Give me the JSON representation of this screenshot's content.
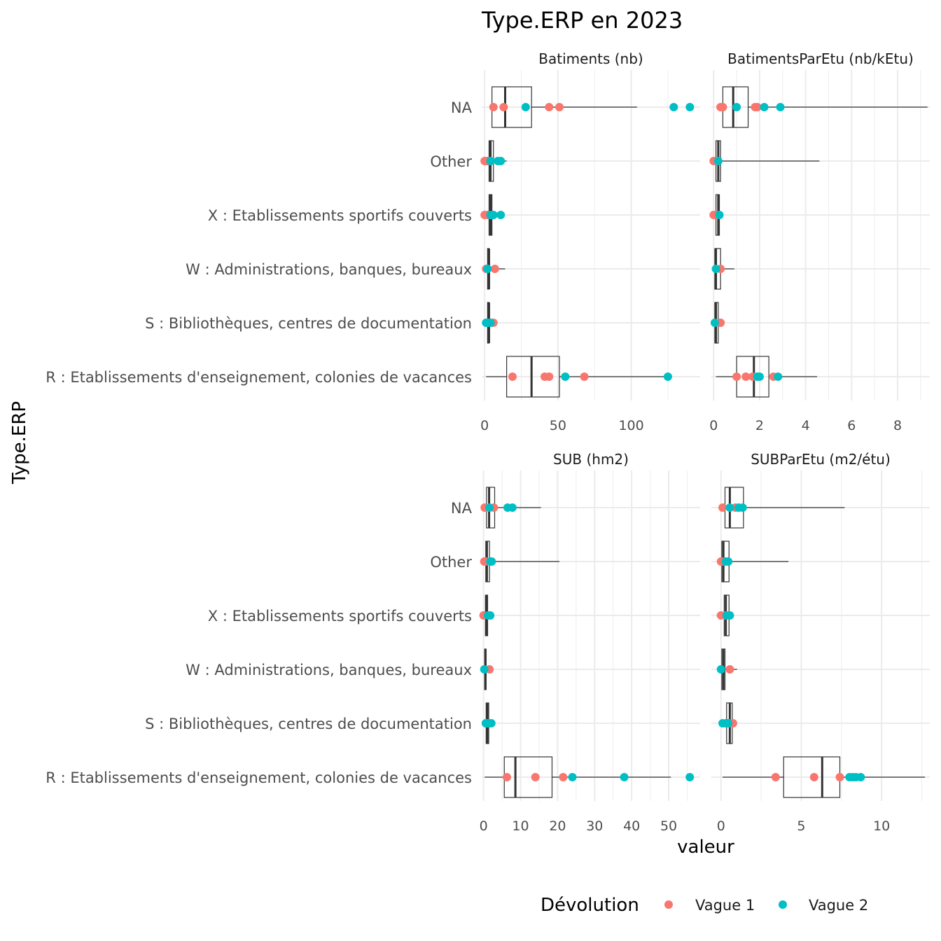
{
  "chart_data": {
    "type": "boxplot",
    "title": "Type.ERP en 2023",
    "xlabel": "valeur",
    "ylabel": "Type.ERP",
    "categories": [
      "NA",
      "Other",
      "X : Etablissements sportifs couverts",
      "W : Administrations, banques, bureaux",
      "S : Bibliothèques, centres de documentation",
      "R : Etablissements d'enseignement, colonies de vacances"
    ],
    "legend": {
      "title": "Dévolution",
      "position": "bottom",
      "entries": [
        {
          "name": "Vague 1",
          "color": "#F8766D"
        },
        {
          "name": "Vague 2",
          "color": "#00BFC4"
        }
      ]
    },
    "facets": [
      {
        "title": "Batiments (nb)",
        "xlim": [
          -2,
          147
        ],
        "ticks": [
          0,
          50,
          100
        ],
        "boxes": [
          {
            "category": "NA",
            "whisker_low": 5,
            "q1": 5,
            "median": 14,
            "q3": 32,
            "whisker_high": 104
          },
          {
            "category": "Other",
            "whisker_low": 2,
            "q1": 3,
            "median": 4,
            "q3": 6,
            "whisker_high": 15
          },
          {
            "category": "X : Etablissements sportifs couverts",
            "whisker_low": 2,
            "q1": 3,
            "median": 4,
            "q3": 5,
            "whisker_high": 5
          },
          {
            "category": "W : Administrations, banques, bureaux",
            "whisker_low": 2,
            "q1": 2,
            "median": 3,
            "q3": 3,
            "whisker_high": 14
          },
          {
            "category": "S : Bibliothèques, centres de documentation",
            "whisker_low": 2,
            "q1": 2,
            "median": 3,
            "q3": 3,
            "whisker_high": 6
          },
          {
            "category": "R : Etablissements d'enseignement, colonies de vacances",
            "whisker_low": 1,
            "q1": 15,
            "median": 32,
            "q3": 51,
            "whisker_high": 127
          }
        ],
        "points": [
          {
            "category": "NA",
            "group": "Vague 1",
            "values": [
              6,
              13,
              44,
              51
            ]
          },
          {
            "category": "NA",
            "group": "Vague 2",
            "values": [
              28,
              129,
              140
            ]
          },
          {
            "category": "Other",
            "group": "Vague 1",
            "values": [
              0,
              1,
              2,
              3
            ]
          },
          {
            "category": "Other",
            "group": "Vague 2",
            "values": [
              4,
              9,
              11
            ]
          },
          {
            "category": "X : Etablissements sportifs couverts",
            "group": "Vague 1",
            "values": [
              0,
              2
            ]
          },
          {
            "category": "X : Etablissements sportifs couverts",
            "group": "Vague 2",
            "values": [
              4,
              6,
              11
            ]
          },
          {
            "category": "W : Administrations, banques, bureaux",
            "group": "Vague 1",
            "values": [
              1,
              7
            ]
          },
          {
            "category": "W : Administrations, banques, bureaux",
            "group": "Vague 2",
            "values": [
              2
            ]
          },
          {
            "category": "S : Bibliothèques, centres de documentation",
            "group": "Vague 1",
            "values": [
              2,
              6
            ]
          },
          {
            "category": "S : Bibliothèques, centres de documentation",
            "group": "Vague 2",
            "values": [
              1,
              3,
              4
            ]
          },
          {
            "category": "R : Etablissements d'enseignement, colonies de vacances",
            "group": "Vague 1",
            "values": [
              19,
              41,
              44,
              68
            ]
          },
          {
            "category": "R : Etablissements d'enseignement, colonies de vacances",
            "group": "Vague 2",
            "values": [
              55,
              125
            ]
          }
        ]
      },
      {
        "title": "BatimentsParEtu (nb/kEtu)",
        "xlim": [
          -0.1,
          9.4
        ],
        "ticks": [
          0,
          2,
          4,
          6,
          8
        ],
        "boxes": [
          {
            "category": "NA",
            "whisker_low": 0.2,
            "q1": 0.4,
            "median": 0.85,
            "q3": 1.5,
            "whisker_high": 9.3
          },
          {
            "category": "Other",
            "whisker_low": 0.05,
            "q1": 0.1,
            "median": 0.2,
            "q3": 0.3,
            "whisker_high": 4.6
          },
          {
            "category": "X : Etablissements sportifs couverts",
            "whisker_low": 0.05,
            "q1": 0.1,
            "median": 0.2,
            "q3": 0.25,
            "whisker_high": 0.3
          },
          {
            "category": "W : Administrations, banques, bureaux",
            "whisker_low": 0.05,
            "q1": 0.05,
            "median": 0.1,
            "q3": 0.3,
            "whisker_high": 0.9
          },
          {
            "category": "S : Bibliothèques, centres de documentation",
            "whisker_low": 0.05,
            "q1": 0.05,
            "median": 0.1,
            "q3": 0.2,
            "whisker_high": 0.3
          },
          {
            "category": "R : Etablissements d'enseignement, colonies de vacances",
            "whisker_low": 0.1,
            "q1": 1.0,
            "median": 1.75,
            "q3": 2.4,
            "whisker_high": 4.5
          }
        ],
        "points": [
          {
            "category": "NA",
            "group": "Vague 1",
            "values": [
              0.3,
              0.4,
              1.8,
              1.9
            ]
          },
          {
            "category": "NA",
            "group": "Vague 2",
            "values": [
              1.0,
              2.2,
              2.9
            ]
          },
          {
            "category": "Other",
            "group": "Vague 1",
            "values": [
              0.0,
              0.1
            ]
          },
          {
            "category": "Other",
            "group": "Vague 2",
            "values": [
              0.2
            ]
          },
          {
            "category": "X : Etablissements sportifs couverts",
            "group": "Vague 1",
            "values": [
              0.0,
              0.1
            ]
          },
          {
            "category": "X : Etablissements sportifs couverts",
            "group": "Vague 2",
            "values": [
              0.25
            ]
          },
          {
            "category": "W : Administrations, banques, bureaux",
            "group": "Vague 1",
            "values": [
              0.3
            ]
          },
          {
            "category": "W : Administrations, banques, bureaux",
            "group": "Vague 2",
            "values": [
              0.1
            ]
          },
          {
            "category": "S : Bibliothèques, centres de documentation",
            "group": "Vague 1",
            "values": [
              0.3
            ]
          },
          {
            "category": "S : Bibliothèques, centres de documentation",
            "group": "Vague 2",
            "values": [
              0.05
            ]
          },
          {
            "category": "R : Etablissements d'enseignement, colonies de vacances",
            "group": "Vague 1",
            "values": [
              1.0,
              1.4,
              1.7,
              2.6
            ]
          },
          {
            "category": "R : Etablissements d'enseignement, colonies de vacances",
            "group": "Vague 2",
            "values": [
              1.9,
              2.0,
              2.8
            ]
          }
        ]
      },
      {
        "title": "SUB (hm2)",
        "xlim": [
          -0.5,
          58.5
        ],
        "ticks": [
          0,
          10,
          20,
          30,
          40,
          50
        ],
        "boxes": [
          {
            "category": "NA",
            "whisker_low": 0.5,
            "q1": 0.8,
            "median": 1.5,
            "q3": 3.0,
            "whisker_high": 15.5
          },
          {
            "category": "Other",
            "whisker_low": 0.3,
            "q1": 0.6,
            "median": 0.9,
            "q3": 1.6,
            "whisker_high": 20.5
          },
          {
            "category": "X : Etablissements sportifs couverts",
            "whisker_low": 0.3,
            "q1": 0.5,
            "median": 0.8,
            "q3": 1.1,
            "whisker_high": 1.2
          },
          {
            "category": "W : Administrations, banques, bureaux",
            "whisker_low": 0.2,
            "q1": 0.3,
            "median": 0.5,
            "q3": 0.7,
            "whisker_high": 0.8
          },
          {
            "category": "S : Bibliothèques, centres de documentation",
            "whisker_low": 0.5,
            "q1": 0.7,
            "median": 1.0,
            "q3": 1.4,
            "whisker_high": 1.5
          },
          {
            "category": "R : Etablissements d'enseignement, colonies de vacances",
            "whisker_low": 0.3,
            "q1": 5.6,
            "median": 8.6,
            "q3": 18.5,
            "whisker_high": 50.6
          }
        ],
        "points": [
          {
            "category": "NA",
            "group": "Vague 1",
            "values": [
              0.3,
              2.8
            ]
          },
          {
            "category": "NA",
            "group": "Vague 2",
            "values": [
              1.6,
              6.5,
              7.8
            ]
          },
          {
            "category": "Other",
            "group": "Vague 1",
            "values": [
              0.2,
              0.6
            ]
          },
          {
            "category": "Other",
            "group": "Vague 2",
            "values": [
              1.8,
              2.2
            ]
          },
          {
            "category": "X : Etablissements sportifs couverts",
            "group": "Vague 1",
            "values": [
              0.0
            ]
          },
          {
            "category": "X : Etablissements sportifs couverts",
            "group": "Vague 2",
            "values": [
              1.2,
              1.8
            ]
          },
          {
            "category": "W : Administrations, banques, bureaux",
            "group": "Vague 1",
            "values": [
              1.6
            ]
          },
          {
            "category": "W : Administrations, banques, bureaux",
            "group": "Vague 2",
            "values": [
              0.2
            ]
          },
          {
            "category": "S : Bibliothèques, centres de documentation",
            "group": "Vague 1",
            "values": [
              0.8
            ]
          },
          {
            "category": "S : Bibliothèques, centres de documentation",
            "group": "Vague 2",
            "values": [
              0.6,
              1.4,
              2.1
            ]
          },
          {
            "category": "R : Etablissements d'enseignement, colonies de vacances",
            "group": "Vague 1",
            "values": [
              6.3,
              14.0,
              21.5
            ]
          },
          {
            "category": "R : Etablissements d'enseignement, colonies de vacances",
            "group": "Vague 2",
            "values": [
              24.0,
              38.0,
              55.7
            ]
          }
        ]
      },
      {
        "title": "SUBParEtu (m2/étu)",
        "xlim": [
          -0.6,
          13.0
        ],
        "ticks": [
          0,
          5,
          10
        ],
        "boxes": [
          {
            "category": "NA",
            "whisker_low": 0.2,
            "q1": 0.25,
            "median": 0.55,
            "q3": 1.4,
            "whisker_high": 7.7
          },
          {
            "category": "Other",
            "whisker_low": 0.05,
            "q1": 0.05,
            "median": 0.15,
            "q3": 0.5,
            "whisker_high": 4.2
          },
          {
            "category": "X : Etablissements sportifs couverts",
            "whisker_low": 0.1,
            "q1": 0.2,
            "median": 0.3,
            "q3": 0.5,
            "whisker_high": 0.8
          },
          {
            "category": "W : Administrations, banques, bureaux",
            "whisker_low": 0.05,
            "q1": 0.05,
            "median": 0.15,
            "q3": 0.25,
            "whisker_high": 1.0
          },
          {
            "category": "S : Bibliothèques, centres de documentation",
            "whisker_low": 0.35,
            "q1": 0.35,
            "median": 0.55,
            "q3": 0.7,
            "whisker_high": 1.0
          },
          {
            "category": "R : Etablissements d'enseignement, colonies de vacances",
            "whisker_low": 0.1,
            "q1": 3.9,
            "median": 6.3,
            "q3": 7.4,
            "whisker_high": 12.7
          }
        ],
        "points": [
          {
            "category": "NA",
            "group": "Vague 1",
            "values": [
              0.1,
              0.9
            ]
          },
          {
            "category": "NA",
            "group": "Vague 2",
            "values": [
              0.55,
              1.1,
              1.35
            ]
          },
          {
            "category": "Other",
            "group": "Vague 1",
            "values": [
              0.0,
              0.2
            ]
          },
          {
            "category": "Other",
            "group": "Vague 2",
            "values": [
              0.3,
              0.45
            ]
          },
          {
            "category": "X : Etablissements sportifs couverts",
            "group": "Vague 1",
            "values": [
              0.0,
              0.3
            ]
          },
          {
            "category": "X : Etablissements sportifs couverts",
            "group": "Vague 2",
            "values": [
              0.35,
              0.55
            ]
          },
          {
            "category": "W : Administrations, banques, bureaux",
            "group": "Vague 1",
            "values": [
              0.55
            ]
          },
          {
            "category": "W : Administrations, banques, bureaux",
            "group": "Vague 2",
            "values": [
              0.0
            ]
          },
          {
            "category": "S : Bibliothèques, centres de documentation",
            "group": "Vague 1",
            "values": [
              0.5,
              0.75
            ]
          },
          {
            "category": "S : Bibliothèques, centres de documentation",
            "group": "Vague 2",
            "values": [
              0.1,
              0.3,
              0.45
            ]
          },
          {
            "category": "R : Etablissements d'enseignement, colonies de vacances",
            "group": "Vague 1",
            "values": [
              3.4,
              5.8,
              7.4
            ]
          },
          {
            "category": "R : Etablissements d'enseignement, colonies de vacances",
            "group": "Vague 2",
            "values": [
              8.0,
              8.2,
              8.4,
              8.7
            ]
          }
        ]
      }
    ]
  }
}
